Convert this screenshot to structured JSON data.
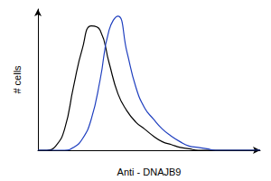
{
  "chart_data": {
    "type": "line",
    "xlabel": "Anti - DNAJB9",
    "ylabel": "# cells",
    "x": [
      0,
      4,
      8,
      12,
      16,
      20,
      24,
      28,
      32,
      36,
      40,
      44,
      48,
      52,
      56,
      60,
      64,
      68,
      72,
      76,
      80,
      84,
      88,
      92,
      96,
      100
    ],
    "series": [
      {
        "color": "#000000",
        "values": [
          0,
          0,
          3,
          15,
          45,
          72,
          88,
          85,
          62,
          40,
          28,
          20,
          15,
          10,
          6,
          4,
          2,
          1,
          0,
          0,
          0,
          0,
          0,
          0,
          0,
          0
        ]
      },
      {
        "color": "#1f3fbf",
        "values": [
          0,
          0,
          0,
          0,
          2,
          8,
          22,
          50,
          85,
          95,
          70,
          45,
          30,
          22,
          15,
          10,
          6,
          3,
          2,
          1,
          0,
          0,
          0,
          0,
          0,
          0
        ]
      }
    ],
    "xlim": [
      0,
      100
    ],
    "ylim": [
      0,
      100
    ],
    "tick_labels": false,
    "grid": false
  }
}
